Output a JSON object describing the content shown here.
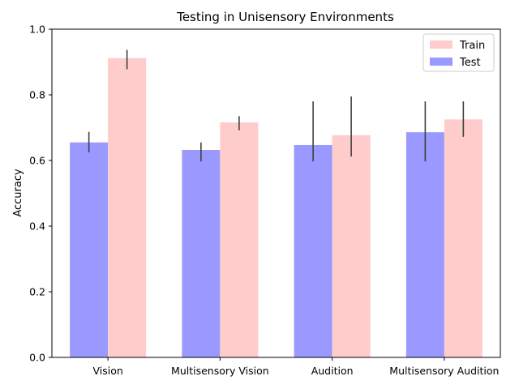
{
  "chart_data": {
    "type": "bar",
    "title": "Testing in Unisensory Environments",
    "xlabel": "",
    "ylabel": "Accuracy",
    "ylim": [
      0,
      1.0
    ],
    "yticks": [
      "0.0",
      "0.2",
      "0.4",
      "0.6",
      "0.8",
      "1.0"
    ],
    "categories": [
      "Vision",
      "Multisensory Vision",
      "Audition",
      "Multisensory Audition"
    ],
    "series": [
      {
        "name": "Test",
        "color": "#9999ff",
        "values": [
          0.655,
          0.632,
          0.647,
          0.686
        ],
        "err_low": [
          0.625,
          0.597,
          0.597,
          0.597
        ],
        "err_high": [
          0.687,
          0.655,
          0.78,
          0.78
        ]
      },
      {
        "name": "Train",
        "color": "#ffcccc",
        "values": [
          0.912,
          0.716,
          0.677,
          0.725
        ],
        "err_low": [
          0.878,
          0.692,
          0.612,
          0.672
        ],
        "err_high": [
          0.937,
          0.735,
          0.795,
          0.78
        ]
      }
    ],
    "legend": {
      "position": "top-right",
      "entries": [
        {
          "label": "Train",
          "color": "#ffcccc"
        },
        {
          "label": "Test",
          "color": "#9999ff"
        }
      ]
    },
    "error_bar_color": "#404040",
    "grid": false
  }
}
